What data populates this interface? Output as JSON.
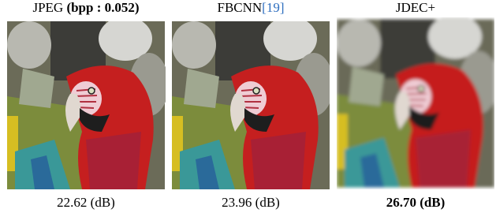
{
  "panels": [
    {
      "title": {
        "plain": "JPEG ",
        "bold": "(bpp : 0.052)"
      },
      "caption": "22.62 (dB)"
    },
    {
      "title": {
        "plain": "FBCNN",
        "ref": "[19]"
      },
      "caption": "23.96 (dB)"
    },
    {
      "title": {
        "plain": "JDEC+"
      },
      "caption": "26.70 (dB)"
    }
  ]
}
